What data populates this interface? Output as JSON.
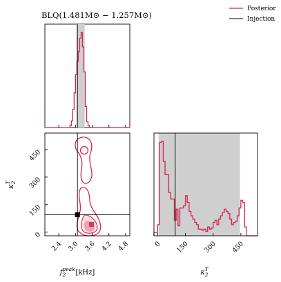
{
  "chart_data": {
    "type": "corner",
    "title": "BLQ(1.481M⊙ − 1.257M⊙)",
    "legend": {
      "placement": "top-right",
      "entries": [
        {
          "label": "Posterior",
          "color": "#d6224e"
        },
        {
          "label": "Injection",
          "color": "#000000"
        }
      ]
    },
    "colors": {
      "posterior": "#d6224e",
      "band": "#cfcfcf",
      "injection": "#000000"
    },
    "params": {
      "f2peak": {
        "label_main": "f",
        "label_sub": "2",
        "label_sup": "peak",
        "unit": "[kHz]",
        "range": [
          1.9,
          4.95
        ],
        "ticks": [
          2.4,
          3.0,
          3.6,
          4.2,
          4.8
        ],
        "tick_labels": [
          "2.4",
          "3.0",
          "3.6",
          "4.2",
          "4.8"
        ],
        "injection": 3.07,
        "band": [
          3.03,
          3.33
        ]
      },
      "kappa2T": {
        "label_main": "κ",
        "label_sub": "2",
        "label_sup": "T",
        "range": [
          -20,
          540
        ],
        "ticks": [
          0,
          150,
          300,
          450
        ],
        "tick_labels": [
          "0",
          "150",
          "300",
          "450"
        ],
        "injection": 95,
        "band": [
          5,
          445
        ]
      }
    },
    "hist_f2peak": {
      "bins": [
        1.9,
        2.0,
        2.1,
        2.2,
        2.3,
        2.4,
        2.5,
        2.6,
        2.7,
        2.8,
        2.85,
        2.9,
        2.95,
        3.0,
        3.05,
        3.1,
        3.15,
        3.2,
        3.25,
        3.3,
        3.35,
        3.4,
        3.45,
        3.5,
        3.6,
        3.7,
        3.8,
        3.9,
        4.0,
        4.2,
        4.4,
        4.6,
        4.95
      ],
      "density": [
        0.0,
        0.0,
        0.0,
        0.0,
        0.0,
        0.0,
        0.0,
        0.0,
        0.0,
        0.02,
        0.07,
        0.19,
        0.36,
        0.55,
        0.69,
        0.79,
        0.93,
        0.99,
        0.84,
        0.58,
        0.22,
        0.06,
        0.02,
        0.0,
        0.0,
        0.0,
        0.0,
        0.0,
        0.0,
        0.0,
        0.0,
        0.0
      ]
    },
    "hist_kappa2T": {
      "bins": [
        -20,
        0,
        10,
        20,
        30,
        40,
        50,
        60,
        70,
        80,
        90,
        100,
        110,
        120,
        130,
        140,
        150,
        160,
        170,
        180,
        190,
        200,
        210,
        220,
        230,
        240,
        250,
        260,
        270,
        280,
        290,
        300,
        310,
        320,
        330,
        340,
        350,
        360,
        370,
        380,
        390,
        400,
        410,
        420,
        430,
        440,
        450,
        460,
        470,
        480,
        540
      ],
      "density": [
        0.03,
        0.1,
        0.84,
        0.85,
        0.67,
        0.55,
        0.55,
        0.39,
        0.33,
        0.33,
        0.14,
        0.24,
        0.09,
        0.25,
        0.25,
        0.27,
        0.36,
        0.3,
        0.22,
        0.18,
        0.15,
        0.12,
        0.1,
        0.06,
        0.06,
        0.05,
        0.06,
        0.04,
        0.08,
        0.06,
        0.07,
        0.12,
        0.14,
        0.1,
        0.15,
        0.18,
        0.21,
        0.24,
        0.22,
        0.2,
        0.15,
        0.1,
        0.12,
        0.13,
        0.18,
        0.25,
        0.32,
        0.3,
        0.08,
        0.0
      ]
    },
    "joint": {
      "injection_point": [
        3.07,
        95
      ],
      "samples": [
        [
          3.05,
          482
        ],
        [
          3.05,
          402
        ],
        [
          3.08,
          318
        ],
        [
          3.1,
          290
        ],
        [
          3.12,
          245
        ],
        [
          3.05,
          190
        ],
        [
          3.1,
          148
        ],
        [
          3.08,
          118
        ],
        [
          3.15,
          95
        ],
        [
          3.2,
          72
        ],
        [
          3.18,
          50
        ],
        [
          3.22,
          35
        ],
        [
          3.25,
          22
        ],
        [
          3.28,
          10
        ],
        [
          3.22,
          15
        ],
        [
          3.3,
          28
        ]
      ]
    }
  }
}
